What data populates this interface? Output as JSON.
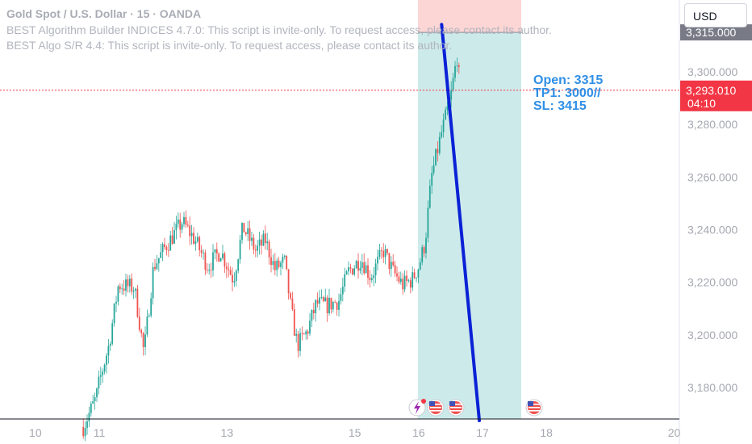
{
  "header": {
    "title": "Gold Spot / U.S. Dollar · 15 · OANDA",
    "indicator1": "BEST Algorithm Builder INDICES 4.7.0: This script is invite-only. To request access, please contact its author.",
    "indicator2": "BEST Algo S/R 4.4: This script is invite-only. To request access, please contact its author."
  },
  "currency_button": "USD",
  "annotation": {
    "line1": "Open: 3315",
    "line2": "TP1: 3000//",
    "line3": "SL: 3415"
  },
  "price_labels": {
    "entry": "3,315.000",
    "last": "3,293.010",
    "countdown": "04:10"
  },
  "colors": {
    "up": "#26a69a",
    "down": "#ef5350",
    "target_zone": "#cdeaea",
    "stop_zone": "#fcd5d5",
    "trend_line": "#0a22d6",
    "note": "#2f8fe6",
    "last_price": "#f23645",
    "entry_label": "#787b86"
  },
  "icons": [
    "event-icon",
    "us-flag-icon",
    "us-flag-icon",
    "us-flag-icon"
  ],
  "chart_data": {
    "type": "candlestick",
    "xlabel": "",
    "ylabel": "",
    "x_ticks": [
      "10",
      "11",
      "13",
      "15",
      "16",
      "17",
      "18",
      "20"
    ],
    "y_ticks": [
      "3,180.000",
      "3,200.000",
      "3,220.000",
      "3,240.000",
      "3,260.000",
      "3,280.000",
      "3,300.000"
    ],
    "ylim": [
      3168,
      3330
    ],
    "price_path": [
      [
        10.75,
        3165
      ],
      [
        10.95,
        3176
      ],
      [
        11.0,
        3182
      ],
      [
        11.15,
        3196
      ],
      [
        11.3,
        3219
      ],
      [
        11.55,
        3218
      ],
      [
        11.7,
        3193
      ],
      [
        11.85,
        3226
      ],
      [
        12.05,
        3234
      ],
      [
        12.3,
        3243
      ],
      [
        12.5,
        3236
      ],
      [
        12.7,
        3226
      ],
      [
        12.9,
        3232
      ],
      [
        13.1,
        3221
      ],
      [
        13.25,
        3241
      ],
      [
        13.45,
        3232
      ],
      [
        13.6,
        3236
      ],
      [
        13.75,
        3225
      ],
      [
        13.9,
        3228
      ],
      [
        14.0,
        3210
      ],
      [
        14.1,
        3196
      ],
      [
        14.25,
        3201
      ],
      [
        14.4,
        3212
      ],
      [
        14.55,
        3211
      ],
      [
        14.75,
        3213
      ],
      [
        14.9,
        3224
      ],
      [
        15.1,
        3229
      ],
      [
        15.25,
        3222
      ],
      [
        15.45,
        3232
      ],
      [
        15.6,
        3224
      ],
      [
        15.75,
        3219
      ],
      [
        15.9,
        3221
      ],
      [
        16.0,
        3226
      ],
      [
        16.1,
        3235
      ],
      [
        16.2,
        3260
      ],
      [
        16.35,
        3276
      ],
      [
        16.5,
        3290
      ],
      [
        16.6,
        3306
      ],
      [
        16.65,
        3294
      ]
    ],
    "trade": {
      "entry": 3315,
      "take_profit": 3000,
      "stop_loss": 3415,
      "last_price": 3293.01
    }
  }
}
